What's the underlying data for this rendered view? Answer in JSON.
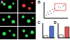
{
  "panels": [
    {
      "label": "A"
    },
    {
      "label": "B"
    },
    {
      "label": "C"
    },
    {
      "label": "D"
    }
  ],
  "chart_data": [
    {
      "type": "scatter",
      "x": [
        10,
        15,
        20,
        25,
        30,
        35,
        40,
        45,
        55,
        60,
        70,
        80,
        85
      ],
      "values": [
        20,
        35,
        25,
        45,
        30,
        55,
        40,
        60,
        50,
        70,
        65,
        75,
        80
      ],
      "color": "#888888",
      "xlim": [
        0,
        100
      ],
      "ylim": [
        0,
        100
      ],
      "xticks": [
        0,
        100
      ],
      "yticks": [
        0,
        100
      ],
      "tick_labels": false
    },
    {
      "type": "bar",
      "categories": [
        null,
        null
      ],
      "values": [
        15,
        80
      ],
      "colors": [
        "#ffffff",
        "#4a6fd1"
      ],
      "ylim": [
        0,
        100
      ],
      "yticks": [
        0,
        50,
        100
      ],
      "tick_labels": false
    },
    {
      "type": "bar",
      "categories": [
        null,
        null
      ],
      "values": [
        20,
        75
      ],
      "colors": [
        "#ffffff",
        "#e05050"
      ],
      "ylim": [
        0,
        100
      ],
      "yticks": [
        0,
        50,
        100
      ],
      "tick_labels": false
    }
  ]
}
